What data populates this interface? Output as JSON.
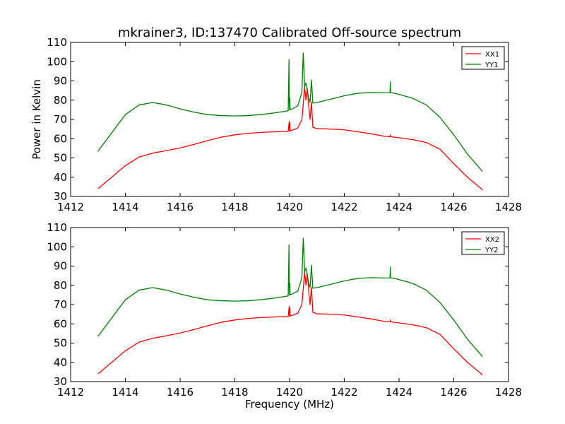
{
  "title": "mkrainer3, ID:137470 Calibrated Off-source spectrum",
  "ylabel": "Power in Kelvin",
  "xlabel": "Frequency (MHz)",
  "colors": {
    "xx": "#ff0000",
    "yy": "#008000",
    "axes": "#000000",
    "background": "#ffffff"
  },
  "chart_data": [
    {
      "type": "line",
      "ylabel": "Power in Kelvin",
      "xlabel": "",
      "xlim": [
        1412,
        1428
      ],
      "ylim": [
        30,
        110
      ],
      "xticks": [
        1412,
        1414,
        1416,
        1418,
        1420,
        1422,
        1424,
        1426,
        1428
      ],
      "yticks": [
        30,
        40,
        50,
        60,
        70,
        80,
        90,
        100,
        110
      ],
      "grid": false,
      "legend": "top-right",
      "series": [
        {
          "name": "XX1",
          "color": "#ff0000",
          "x": [
            1413.0,
            1413.5,
            1414.0,
            1414.5,
            1415.0,
            1415.5,
            1416.0,
            1416.5,
            1417.0,
            1417.5,
            1418.0,
            1418.5,
            1419.0,
            1419.5,
            1419.95,
            1419.98,
            1419.99,
            1420.0,
            1420.01,
            1420.02,
            1420.05,
            1420.3,
            1420.45,
            1420.5,
            1420.55,
            1420.6,
            1420.65,
            1420.7,
            1420.75,
            1420.8,
            1420.85,
            1421.0,
            1421.5,
            1422.0,
            1422.5,
            1423.0,
            1423.5,
            1423.67,
            1423.68,
            1423.69,
            1424.0,
            1424.5,
            1425.0,
            1425.5,
            1426.0,
            1426.5,
            1427.05
          ],
          "y": [
            34,
            40,
            46,
            50.5,
            52.5,
            53.8,
            55.2,
            57,
            59,
            60.8,
            62,
            62.8,
            63.3,
            63.6,
            63.8,
            68,
            69,
            64,
            68,
            64,
            64.2,
            65.5,
            70,
            78,
            87,
            80,
            86,
            77,
            70,
            79,
            66,
            65.2,
            65,
            64.6,
            63.6,
            62.5,
            61.2,
            61,
            62,
            61,
            60.5,
            59.5,
            58,
            54.5,
            47,
            40,
            33.5
          ]
        },
        {
          "name": "YY1",
          "color": "#008000",
          "x": [
            1413.0,
            1413.5,
            1414.0,
            1414.5,
            1415.0,
            1415.5,
            1416.0,
            1416.5,
            1417.0,
            1417.5,
            1418.0,
            1418.5,
            1419.0,
            1419.5,
            1419.95,
            1419.98,
            1419.99,
            1420.0,
            1420.01,
            1420.02,
            1420.05,
            1420.3,
            1420.45,
            1420.5,
            1420.55,
            1420.6,
            1420.65,
            1420.7,
            1420.75,
            1420.8,
            1420.85,
            1421.0,
            1421.5,
            1422.0,
            1422.5,
            1423.0,
            1423.5,
            1423.67,
            1423.68,
            1423.69,
            1424.0,
            1424.5,
            1425.0,
            1425.5,
            1426.0,
            1426.5,
            1427.05
          ],
          "y": [
            53.5,
            63,
            72.5,
            77.5,
            78.8,
            77.5,
            75.5,
            73.8,
            72.5,
            72,
            71.8,
            72,
            72.6,
            73.5,
            74.5,
            101,
            80,
            75,
            81,
            75,
            75.2,
            77,
            84,
            104.5,
            87,
            89,
            85,
            81,
            79,
            90.5,
            78.5,
            78.8,
            80.5,
            82.3,
            83.6,
            84,
            83.8,
            83.8,
            89.5,
            84,
            83,
            81,
            77.5,
            71,
            62,
            52,
            43
          ]
        }
      ]
    },
    {
      "type": "line",
      "ylabel": "",
      "xlabel": "Frequency (MHz)",
      "xlim": [
        1412,
        1428
      ],
      "ylim": [
        30,
        110
      ],
      "xticks": [
        1412,
        1414,
        1416,
        1418,
        1420,
        1422,
        1424,
        1426,
        1428
      ],
      "yticks": [
        30,
        40,
        50,
        60,
        70,
        80,
        90,
        100,
        110
      ],
      "grid": false,
      "legend": "top-right",
      "series": [
        {
          "name": "XX2",
          "color": "#ff0000",
          "x": [
            1413.0,
            1413.5,
            1414.0,
            1414.5,
            1415.0,
            1415.5,
            1416.0,
            1416.5,
            1417.0,
            1417.5,
            1418.0,
            1418.5,
            1419.0,
            1419.5,
            1419.95,
            1419.98,
            1419.99,
            1420.0,
            1420.01,
            1420.02,
            1420.05,
            1420.3,
            1420.45,
            1420.5,
            1420.55,
            1420.6,
            1420.65,
            1420.7,
            1420.75,
            1420.8,
            1420.85,
            1421.0,
            1421.5,
            1422.0,
            1422.5,
            1423.0,
            1423.5,
            1423.67,
            1423.68,
            1423.69,
            1424.0,
            1424.5,
            1425.0,
            1425.5,
            1426.0,
            1426.5,
            1427.05
          ],
          "y": [
            34,
            40,
            46,
            50.5,
            52.5,
            53.8,
            55.2,
            57,
            59,
            60.8,
            62,
            62.8,
            63.3,
            63.6,
            63.8,
            68,
            69,
            64,
            68,
            64,
            64.2,
            65.5,
            70,
            78,
            87,
            80,
            86,
            77,
            70,
            79,
            66,
            65.2,
            65,
            64.6,
            63.6,
            62.5,
            61.2,
            61,
            62,
            61,
            60.5,
            59.5,
            58,
            54.5,
            47,
            40,
            33.5
          ]
        },
        {
          "name": "YY2",
          "color": "#008000",
          "x": [
            1413.0,
            1413.5,
            1414.0,
            1414.5,
            1415.0,
            1415.5,
            1416.0,
            1416.5,
            1417.0,
            1417.5,
            1418.0,
            1418.5,
            1419.0,
            1419.5,
            1419.95,
            1419.98,
            1419.99,
            1420.0,
            1420.01,
            1420.02,
            1420.05,
            1420.3,
            1420.45,
            1420.5,
            1420.55,
            1420.6,
            1420.65,
            1420.7,
            1420.75,
            1420.8,
            1420.85,
            1421.0,
            1421.5,
            1422.0,
            1422.5,
            1423.0,
            1423.5,
            1423.67,
            1423.68,
            1423.69,
            1424.0,
            1424.5,
            1425.0,
            1425.5,
            1426.0,
            1426.5,
            1427.05
          ],
          "y": [
            53.5,
            63,
            72.5,
            77.5,
            78.8,
            77.5,
            75.5,
            73.8,
            72.5,
            72,
            71.8,
            72,
            72.6,
            73.5,
            74.5,
            101,
            80,
            75,
            81,
            75,
            75.2,
            77,
            84,
            104.5,
            87,
            89,
            85,
            81,
            79,
            90.5,
            78.5,
            78.8,
            80.5,
            82.3,
            83.6,
            84,
            83.8,
            83.8,
            89.5,
            84,
            83,
            81,
            77.5,
            71,
            62,
            52,
            43
          ]
        }
      ]
    }
  ]
}
